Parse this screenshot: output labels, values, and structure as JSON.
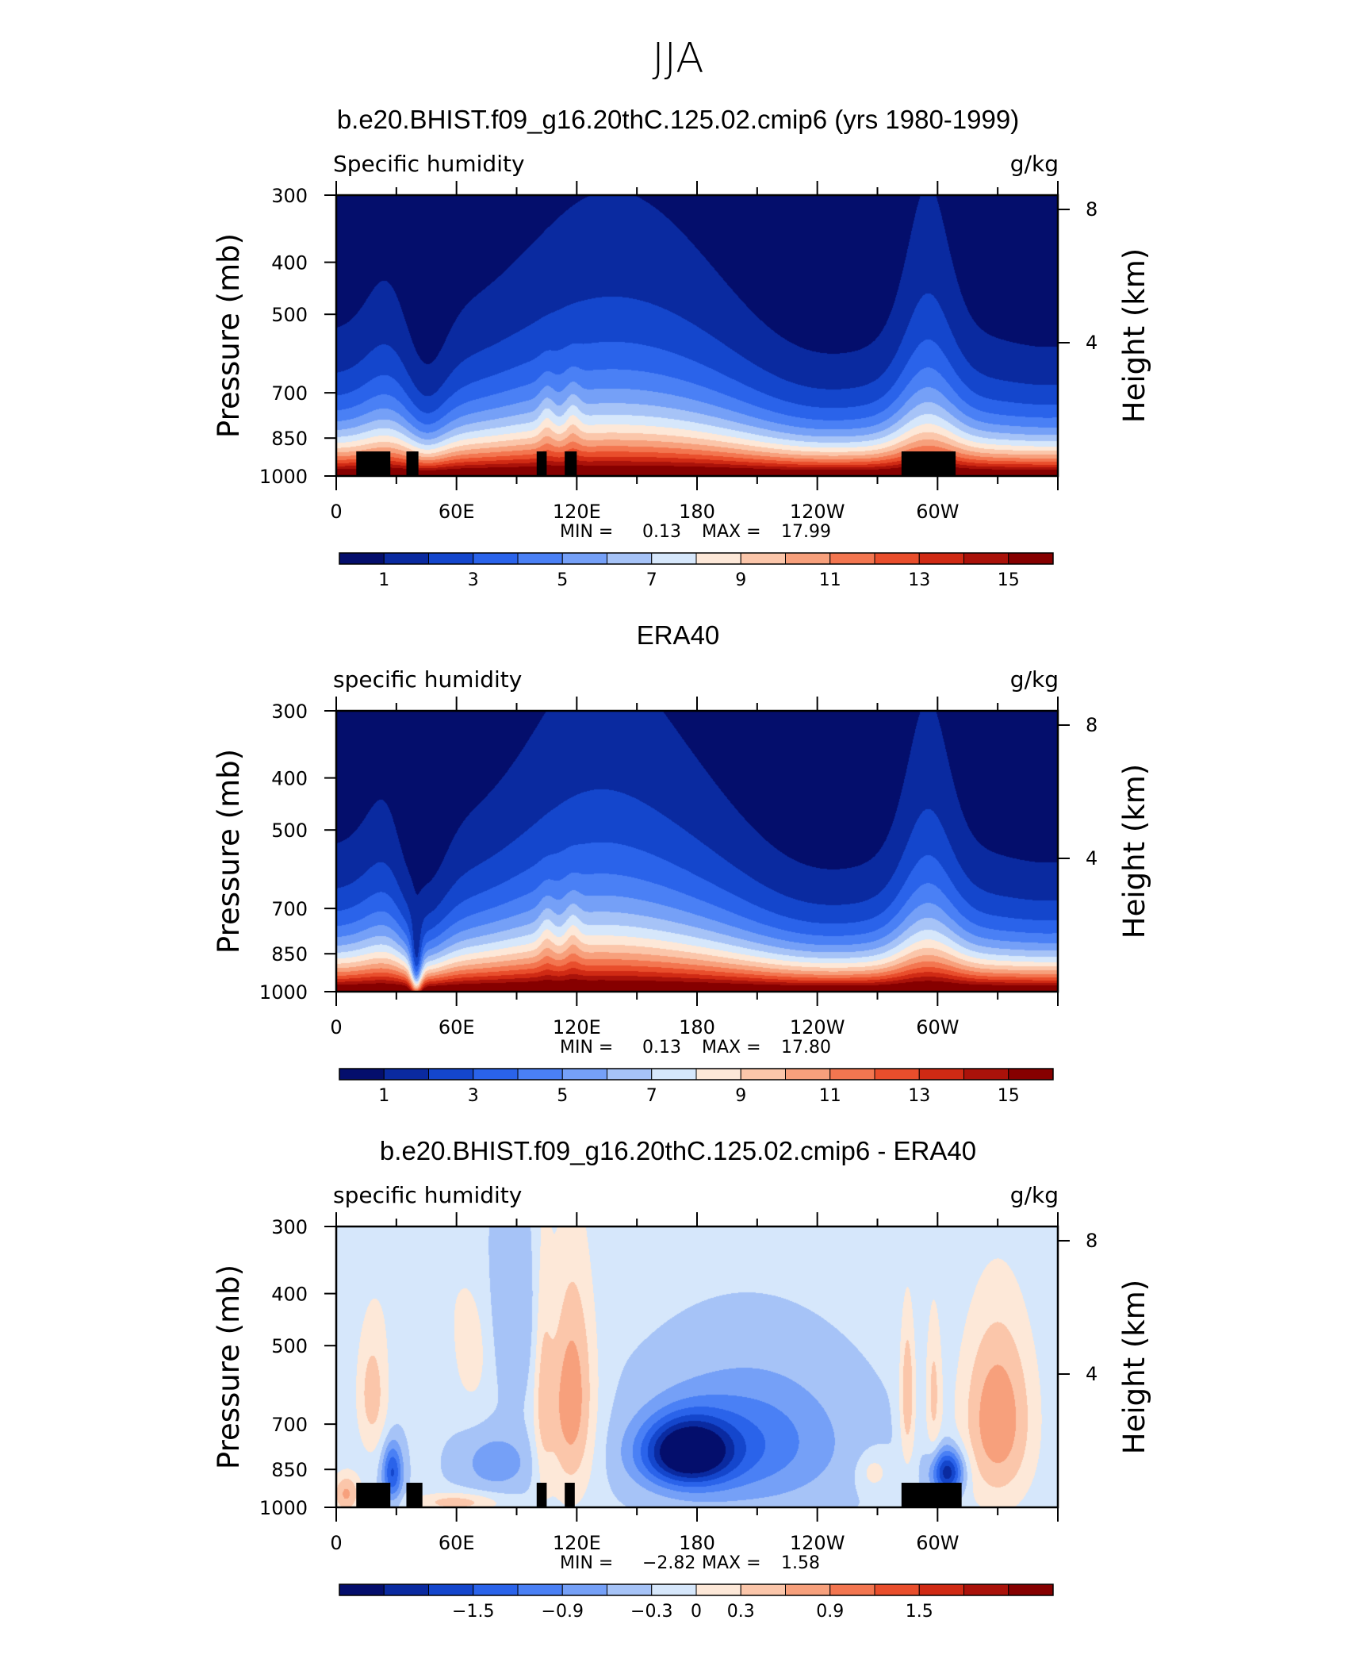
{
  "figure": {
    "title": "JJA"
  },
  "chart_data": [
    {
      "type": "heatmap",
      "title": "b.e20.BHIST.f09_g16.20thC.125.02.cmip6 (yrs 1980-1999)",
      "left_label": "Specific humidity",
      "units": "g/kg",
      "ylabel": "Pressure (mb)",
      "y2label": "Height (km)",
      "x_ticks": [
        "0",
        "60E",
        "120E",
        "180",
        "120W",
        "60W"
      ],
      "y_ticks": [
        "300",
        "400",
        "500",
        "700",
        "850",
        "1000"
      ],
      "y2_ticks": [
        "8",
        "4"
      ],
      "xlim": [
        0,
        360
      ],
      "ylim": [
        1000,
        300
      ],
      "min_label": "MIN =",
      "min_value": "0.13",
      "max_label": "MAX =",
      "max_value": "17.99",
      "colorbar_labels": [
        "1",
        "3",
        "5",
        "7",
        "9",
        "11",
        "13",
        "15"
      ],
      "field": "model",
      "topography": [
        [
          10,
          900
        ],
        [
          27,
          860
        ],
        [
          35,
          900
        ],
        [
          41,
          1000
        ],
        [
          100,
          900
        ],
        [
          105,
          1000
        ],
        [
          114,
          900
        ],
        [
          120,
          1000
        ],
        [
          282,
          900
        ],
        [
          309,
          1000
        ]
      ]
    },
    {
      "type": "heatmap",
      "title": "ERA40",
      "left_label": "specific humidity",
      "units": "g/kg",
      "ylabel": "Pressure (mb)",
      "y2label": "Height (km)",
      "x_ticks": [
        "0",
        "60E",
        "120E",
        "180",
        "120W",
        "60W"
      ],
      "y_ticks": [
        "300",
        "400",
        "500",
        "700",
        "850",
        "1000"
      ],
      "y2_ticks": [
        "8",
        "4"
      ],
      "xlim": [
        0,
        360
      ],
      "ylim": [
        1000,
        300
      ],
      "min_label": "MIN =",
      "min_value": "0.13",
      "max_label": "MAX =",
      "max_value": "17.80",
      "colorbar_labels": [
        "1",
        "3",
        "5",
        "7",
        "9",
        "11",
        "13",
        "15"
      ],
      "field": "obs",
      "topography": []
    },
    {
      "type": "heatmap",
      "title": "b.e20.BHIST.f09_g16.20thC.125.02.cmip6 - ERA40",
      "left_label": "specific humidity",
      "units": "g/kg",
      "ylabel": "Pressure (mb)",
      "y2label": "Height (km)",
      "x_ticks": [
        "0",
        "60E",
        "120E",
        "180",
        "120W",
        "60W"
      ],
      "y_ticks": [
        "300",
        "400",
        "500",
        "700",
        "850",
        "1000"
      ],
      "y2_ticks": [
        "8",
        "4"
      ],
      "xlim": [
        0,
        360
      ],
      "ylim": [
        1000,
        300
      ],
      "min_label": "MIN =",
      "min_value": "−2.82",
      "max_label": "MAX =",
      "max_value": "1.58",
      "colorbar_labels": [
        "−1.5",
        "−0.9",
        "−0.3",
        "0",
        "0.3",
        "0.9",
        "1.5"
      ],
      "field": "diff",
      "topography": [
        [
          10,
          900
        ],
        [
          27,
          860
        ],
        [
          35,
          900
        ],
        [
          43,
          1000
        ],
        [
          100,
          900
        ],
        [
          105,
          1000
        ],
        [
          114,
          900
        ],
        [
          119,
          1000
        ],
        [
          282,
          900
        ],
        [
          312,
          1000
        ]
      ]
    }
  ],
  "colors": {
    "colormap": [
      "#040e6c",
      "#0a2aa0",
      "#1446cc",
      "#2a63ea",
      "#4a80f5",
      "#75a0f7",
      "#a6c3f7",
      "#d6e7fb",
      "#fde8d8",
      "#fbc6aa",
      "#f7a07c",
      "#f37650",
      "#e94e2c",
      "#d02a14",
      "#aa120a",
      "#860000"
    ],
    "topography": "#000000"
  }
}
